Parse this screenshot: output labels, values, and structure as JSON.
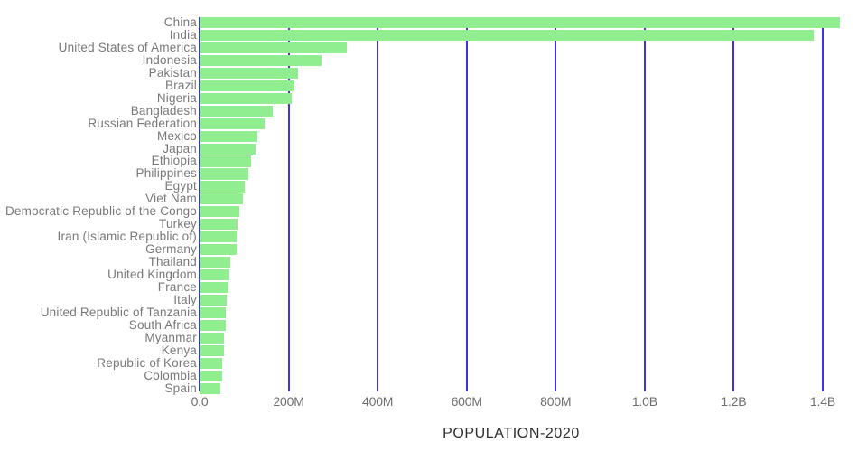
{
  "chart_data": {
    "type": "bar",
    "orientation": "horizontal",
    "title": "POPULATION-2020",
    "categories": [
      "China",
      "India",
      "United States of America",
      "Indonesia",
      "Pakistan",
      "Brazil",
      "Nigeria",
      "Bangladesh",
      "Russian Federation",
      "Mexico",
      "Japan",
      "Ethiopia",
      "Philippines",
      "Egypt",
      "Viet Nam",
      "Democratic Republic of the Congo",
      "Turkey",
      "Iran (Islamic Republic of)",
      "Germany",
      "Thailand",
      "United Kingdom",
      "France",
      "Italy",
      "United Republic of Tanzania",
      "South Africa",
      "Myanmar",
      "Kenya",
      "Republic of Korea",
      "Colombia",
      "Spain"
    ],
    "values_millions": [
      1439.3,
      1380.0,
      331.0,
      273.5,
      220.9,
      212.6,
      206.1,
      164.7,
      145.9,
      128.9,
      126.5,
      115.0,
      109.6,
      102.3,
      97.3,
      89.6,
      84.3,
      84.0,
      83.8,
      69.8,
      67.9,
      65.3,
      60.5,
      59.7,
      59.3,
      54.4,
      53.8,
      51.3,
      50.9,
      46.8
    ],
    "xlim_millions": [
      0,
      1400
    ],
    "x_tick_values_millions": [
      0,
      200,
      400,
      600,
      800,
      1000,
      1200,
      1400
    ],
    "x_tick_labels": [
      "0.0",
      "200M",
      "400M",
      "600M",
      "800M",
      "1.0B",
      "1.2B",
      "1.4B"
    ],
    "grid": "vertical",
    "legend": false,
    "colors": {
      "bar": "#90EE90",
      "gridline": "#3c32e6",
      "category_label": "#787878",
      "tick_label": "#6e6e6e",
      "title": "#2e2e2e"
    }
  }
}
